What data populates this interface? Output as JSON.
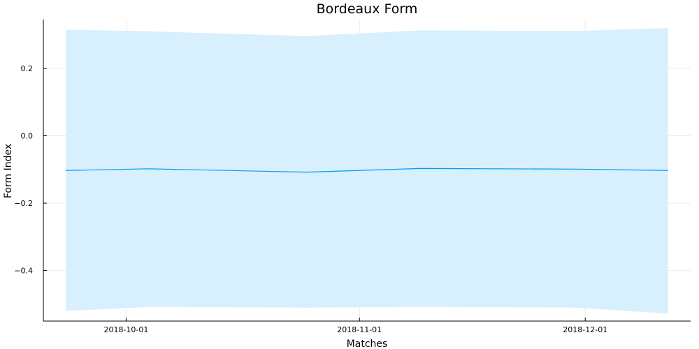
{
  "chart_data": {
    "type": "line",
    "title": "Bordeaux Form",
    "xlabel": "Matches",
    "ylabel": "Form Index",
    "x_ticks": [
      "2018-10-01",
      "2018-11-01",
      "2018-12-01"
    ],
    "y_ticks": [
      -0.4,
      -0.2,
      0.0,
      0.2
    ],
    "y_tick_labels": [
      "−0.4",
      "−0.2",
      "0.0",
      "0.2"
    ],
    "xlim": [
      "2018-09-20",
      "2018-12-15"
    ],
    "ylim": [
      -0.55,
      0.345
    ],
    "grid": true,
    "legend": "none",
    "colors": {
      "line": "#009af9",
      "band": "#d8effd"
    },
    "series": [
      {
        "x": [
          "2018-09-23",
          "2018-10-04",
          "2018-10-25",
          "2018-11-09",
          "2018-11-30",
          "2018-12-12"
        ],
        "y": [
          -0.103,
          -0.098,
          -0.108,
          -0.097,
          -0.099,
          -0.103
        ],
        "upper": [
          0.315,
          0.31,
          0.296,
          0.313,
          0.311,
          0.32
        ],
        "lower": [
          -0.52,
          -0.508,
          -0.51,
          -0.508,
          -0.51,
          -0.528
        ]
      }
    ]
  }
}
